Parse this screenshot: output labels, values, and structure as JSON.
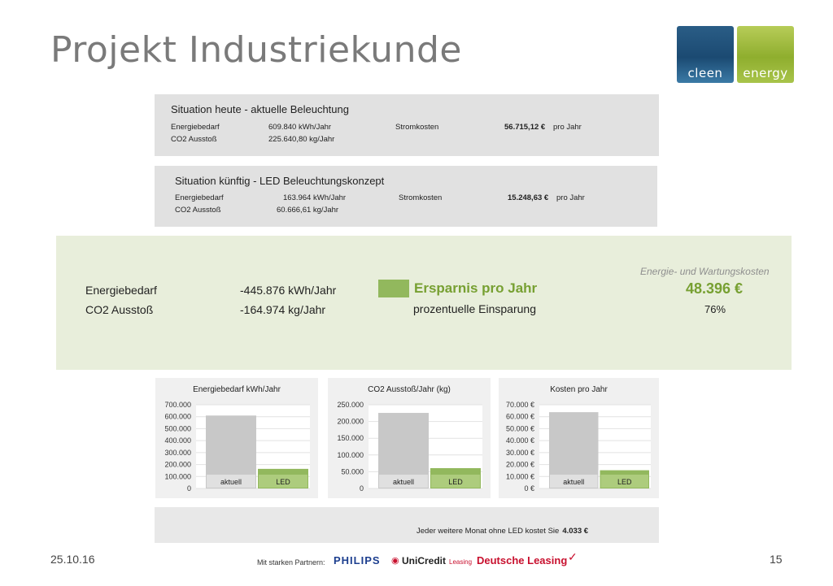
{
  "title": "Projekt Industriekunde",
  "logo": {
    "left": "cleen",
    "right": "energy"
  },
  "current": {
    "heading": "Situation heute - aktuelle Beleuchtung",
    "energie_label": "Energiebedarf",
    "energie_value": "609.840  kWh/Jahr",
    "co2_label": "CO2 Ausstoß",
    "co2_value": "225.640,80 kg/Jahr",
    "strom_label": "Stromkosten",
    "strom_value": "56.715,12 €",
    "strom_unit": "pro Jahr"
  },
  "future": {
    "heading": "Situation künftig - LED Beleuchtungskonzept",
    "energie_label": "Energiebedarf",
    "energie_value": "163.964  kWh/Jahr",
    "co2_label": "CO2 Ausstoß",
    "co2_value": "60.666,61  kg/Jahr",
    "strom_label": "Stromkosten",
    "strom_value": "15.248,63 €",
    "strom_unit": "pro Jahr"
  },
  "summary": {
    "energie_label": "Energiebedarf",
    "energie_value": "-445.876  kWh/Jahr",
    "co2_label": "CO2 Ausstoß",
    "co2_value": "-164.974  kg/Jahr",
    "ersparnis_label": "Ersparnis pro Jahr",
    "prozent_label": "prozentuelle Einsparung",
    "kosten_header": "Energie- und Wartungskosten",
    "kosten_value": "48.396 €",
    "prozent_value": "76%"
  },
  "colors": {
    "aktuell": "#c8c8c8",
    "led": "#92b85d",
    "accent": "#77a032"
  },
  "chart_data": [
    {
      "type": "bar",
      "title": "Energiebedarf kWh/Jahr",
      "categories": [
        "aktuell",
        "LED"
      ],
      "values": [
        609840,
        163964
      ],
      "ylim": [
        0,
        700000
      ],
      "ticks": [
        "0",
        "100.000",
        "200.000",
        "300.000",
        "400.000",
        "500.000",
        "600.000",
        "700.000"
      ],
      "grid": true
    },
    {
      "type": "bar",
      "title": "CO2 Ausstoß/Jahr (kg)",
      "categories": [
        "aktuell",
        "LED"
      ],
      "values": [
        225640.8,
        60666.61
      ],
      "ylim": [
        0,
        250000
      ],
      "ticks": [
        "0",
        "50.000",
        "100.000",
        "150.000",
        "200.000",
        "250.000"
      ],
      "grid": true
    },
    {
      "type": "bar",
      "title": "Kosten pro Jahr",
      "categories": [
        "aktuell",
        "LED"
      ],
      "values": [
        63800,
        15248.63
      ],
      "ylim": [
        0,
        70000
      ],
      "ticks": [
        "0 €",
        "10.000 €",
        "20.000 €",
        "30.000 €",
        "40.000 €",
        "50.000 €",
        "60.000 €",
        "70.000 €"
      ],
      "grid": true
    }
  ],
  "footer": {
    "monthly_text": "Jeder weitere Monat ohne LED kostet Sie",
    "monthly_value": "4.033 €",
    "date": "25.10.16",
    "page": "15",
    "partners_label": "Mit starken Partnern:",
    "partner1": "PHILIPS",
    "partner2": "UniCredit",
    "partner2_sub": "Leasing",
    "partner3": "Deutsche Leasing"
  }
}
